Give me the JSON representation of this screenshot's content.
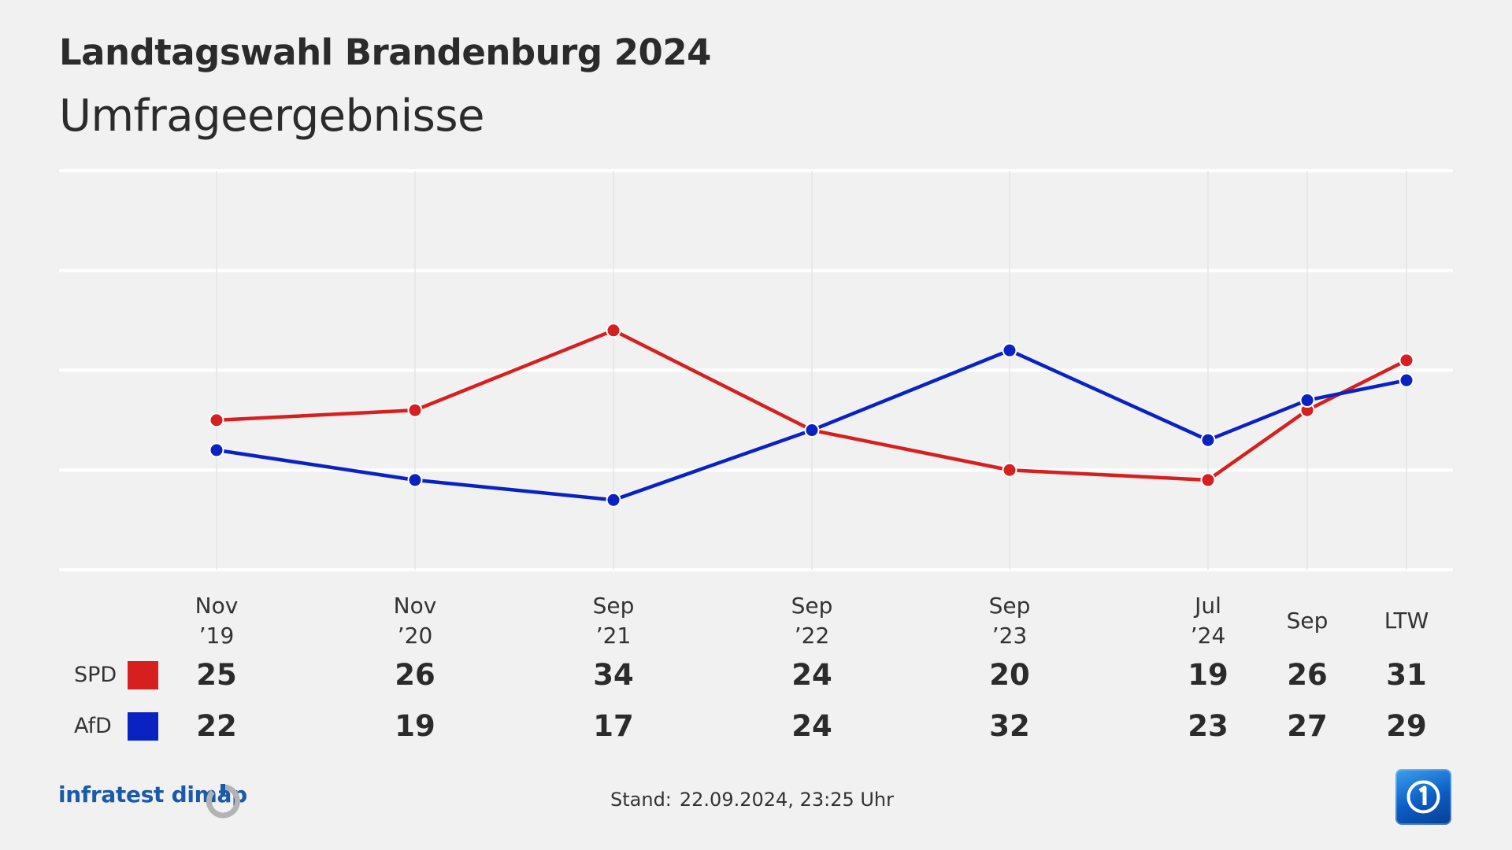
{
  "header": {
    "title": "Landtagswahl Brandenburg 2024",
    "subtitle": "Umfrageergebnisse"
  },
  "chart_data": {
    "type": "line",
    "categories": [
      {
        "line1": "Nov",
        "line2": "’19"
      },
      {
        "line1": "Nov",
        "line2": "’20"
      },
      {
        "line1": "Sep",
        "line2": "’21"
      },
      {
        "line1": "Sep",
        "line2": "’22"
      },
      {
        "line1": "Sep",
        "line2": "’23"
      },
      {
        "line1": "Jul",
        "line2": "’24"
      },
      {
        "line1": "Sep",
        "line2": ""
      },
      {
        "line1": "LTW",
        "line2": ""
      }
    ],
    "series": [
      {
        "name": "SPD",
        "color": "#d6201f",
        "values": [
          25,
          26,
          34,
          24,
          20,
          19,
          26,
          31
        ]
      },
      {
        "name": "AfD",
        "color": "#0a22c2",
        "values": [
          22,
          19,
          17,
          24,
          32,
          23,
          27,
          29
        ]
      }
    ],
    "ylim": [
      10,
      50
    ],
    "grid": true
  },
  "footer": {
    "brand": "infratest dimap",
    "stand_label": "Stand:",
    "stand_value": "22.09.2024, 23:25 Uhr"
  },
  "icons": {
    "brand_logo": "infratest-dimap-logo-icon",
    "channel_logo": "das-erste-logo-icon"
  }
}
